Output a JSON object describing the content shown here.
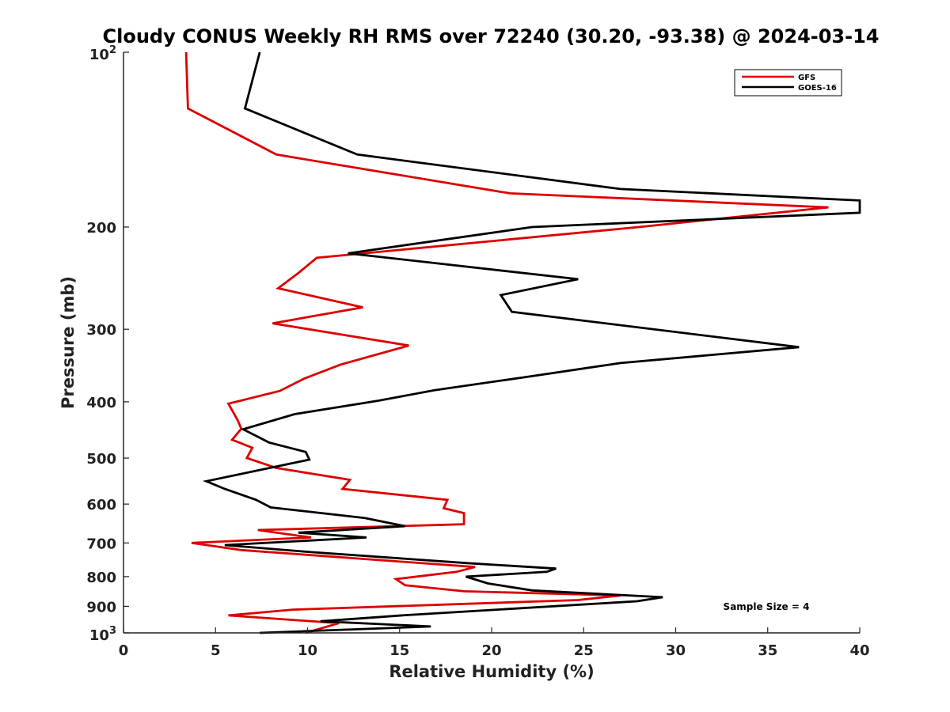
{
  "chart_data": {
    "type": "line",
    "title": "Cloudy CONUS Weekly RH RMS over 72240 (30.20, -93.38) @ 2024-03-14",
    "xlabel": "Relative Humidity (%)",
    "ylabel": "Pressure (mb)",
    "xlim": [
      0,
      40
    ],
    "ylim": [
      100,
      1000
    ],
    "y_scale": "log",
    "y_reversed": true,
    "x_ticks": [
      0,
      5,
      10,
      15,
      20,
      25,
      30,
      35,
      40
    ],
    "x_tick_labels": [
      "0",
      "5",
      "10",
      "15",
      "20",
      "25",
      "30",
      "35",
      "40"
    ],
    "y_ticks": [
      200,
      300,
      400,
      500,
      600,
      700,
      800,
      900
    ],
    "y_tick_labels": [
      "200",
      "300",
      "400",
      "500",
      "600",
      "700",
      "800",
      "900"
    ],
    "y_top_label": {
      "base": "10",
      "exp": "2"
    },
    "y_bottom_label": {
      "base": "10",
      "exp": "3"
    },
    "legend": {
      "placement": "top-right",
      "entries": [
        {
          "name": "GFS",
          "color": "#dd0000"
        },
        {
          "name": "GOES-16",
          "color": "#000000"
        }
      ]
    },
    "annotation": "Sample Size = 4",
    "series": [
      {
        "name": "GFS",
        "color": "#dd0000",
        "points": [
          [
            3.4,
            100
          ],
          [
            3.5,
            125
          ],
          [
            8.3,
            150
          ],
          [
            21,
            175
          ],
          [
            38.3,
            185
          ],
          [
            28,
            200
          ],
          [
            10.5,
            226
          ],
          [
            9.5,
            240
          ],
          [
            8.4,
            255
          ],
          [
            13,
            275
          ],
          [
            8.1,
            293
          ],
          [
            15.5,
            320
          ],
          [
            11.8,
            345
          ],
          [
            9.8,
            365
          ],
          [
            8.5,
            383
          ],
          [
            5.7,
            403
          ],
          [
            6.2,
            430
          ],
          [
            6.4,
            445
          ],
          [
            5.9,
            465
          ],
          [
            7,
            480
          ],
          [
            6.7,
            500
          ],
          [
            8.3,
            520
          ],
          [
            12.3,
            545
          ],
          [
            11.9,
            565
          ],
          [
            17.6,
            590
          ],
          [
            17.4,
            610
          ],
          [
            18.5,
            622
          ],
          [
            18.5,
            650
          ],
          [
            7.3,
            665
          ],
          [
            10.2,
            685
          ],
          [
            3.7,
            700
          ],
          [
            6.4,
            720
          ],
          [
            19.1,
            770
          ],
          [
            18.1,
            785
          ],
          [
            14.8,
            808
          ],
          [
            15.3,
            828
          ],
          [
            18.5,
            848
          ],
          [
            27,
            862
          ],
          [
            24.7,
            878
          ],
          [
            9.2,
            912
          ],
          [
            5.7,
            933
          ],
          [
            11.7,
            962
          ],
          [
            9.9,
            1000
          ]
        ]
      },
      {
        "name": "GOES-16",
        "color": "#000000",
        "points": [
          [
            7.4,
            100
          ],
          [
            6.6,
            125
          ],
          [
            12.7,
            150
          ],
          [
            27,
            172
          ],
          [
            40,
            180
          ],
          [
            40,
            189
          ],
          [
            22.2,
            200
          ],
          [
            12.2,
            222
          ],
          [
            24.7,
            246
          ],
          [
            20.5,
            262
          ],
          [
            21.1,
            280
          ],
          [
            36.7,
            322
          ],
          [
            27,
            343
          ],
          [
            22,
            362
          ],
          [
            16.9,
            382
          ],
          [
            13.9,
            398
          ],
          [
            9.3,
            420
          ],
          [
            6.5,
            446
          ],
          [
            7.9,
            470
          ],
          [
            9.9,
            488
          ],
          [
            10.1,
            503
          ],
          [
            7.3,
            525
          ],
          [
            4.5,
            548
          ],
          [
            5.5,
            565
          ],
          [
            7.2,
            590
          ],
          [
            8,
            608
          ],
          [
            13.1,
            634
          ],
          [
            15.3,
            655
          ],
          [
            9.5,
            672
          ],
          [
            13.2,
            685
          ],
          [
            5.5,
            706
          ],
          [
            10.2,
            726
          ],
          [
            18.6,
            758
          ],
          [
            23.5,
            775
          ],
          [
            23,
            785
          ],
          [
            18.6,
            800
          ],
          [
            19.8,
            822
          ],
          [
            22.2,
            845
          ],
          [
            29.3,
            868
          ],
          [
            27.9,
            882
          ],
          [
            15.3,
            932
          ],
          [
            10.7,
            955
          ],
          [
            16.7,
            975
          ],
          [
            7.4,
            1000
          ]
        ]
      }
    ]
  }
}
